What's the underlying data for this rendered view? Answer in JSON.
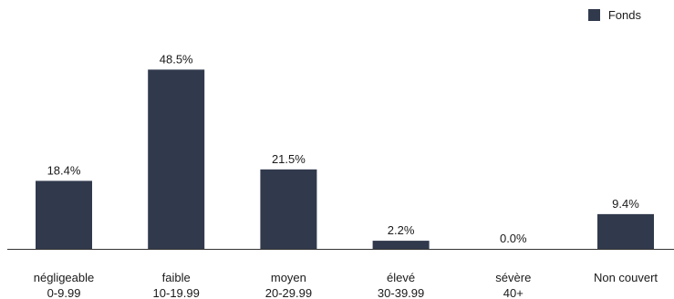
{
  "chart_data": {
    "type": "bar",
    "categories": [
      {
        "label": "négligeable",
        "range": "0-9.99"
      },
      {
        "label": "faible",
        "range": "10-19.99"
      },
      {
        "label": "moyen",
        "range": "20-29.99"
      },
      {
        "label": "élevé",
        "range": "30-39.99"
      },
      {
        "label": "sévère",
        "range": "40+"
      },
      {
        "label": "Non couvert",
        "range": ""
      }
    ],
    "series": [
      {
        "name": "Fonds",
        "color": "#313a4d",
        "values": [
          18.4,
          48.5,
          21.5,
          2.2,
          0.0,
          9.4
        ]
      }
    ],
    "value_labels": [
      "18.4%",
      "48.5%",
      "21.5%",
      "2.2%",
      "0.0%",
      "9.4%"
    ],
    "unit": "%",
    "ylim": [
      0,
      55
    ],
    "grid": false,
    "legend_position": "top-right",
    "title": "",
    "xlabel": "",
    "ylabel": ""
  }
}
